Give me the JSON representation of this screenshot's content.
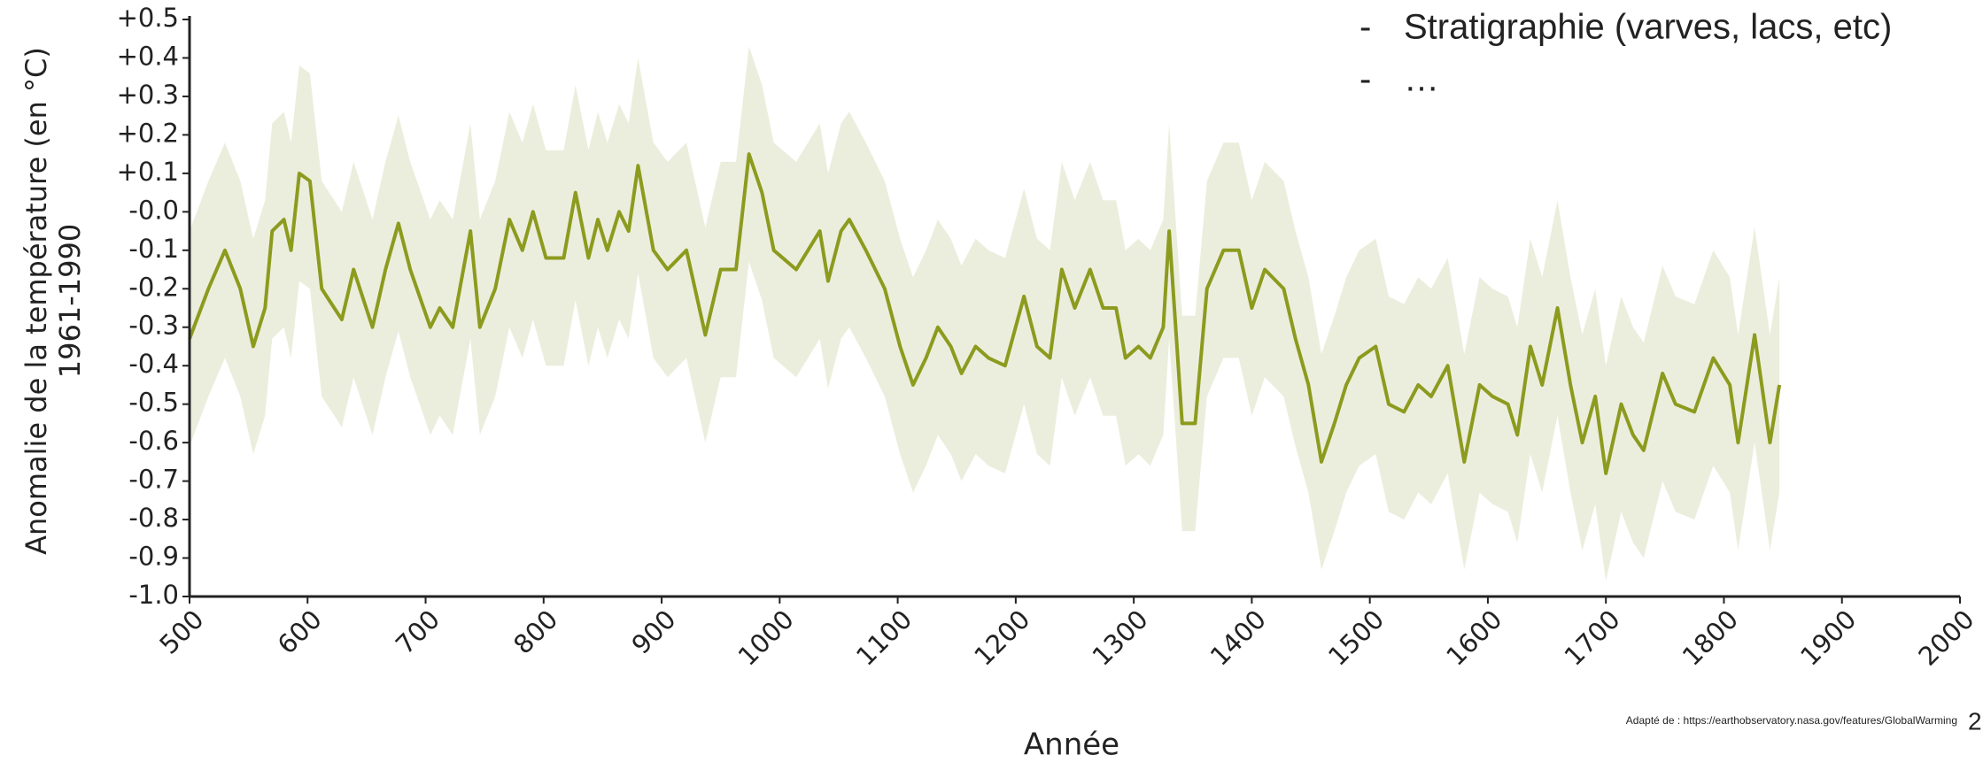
{
  "chart_data": {
    "type": "line",
    "xlabel": "Année",
    "ylabel": [
      "Anomalie de la température (en °C)",
      "1961-1990"
    ],
    "x": [
      500,
      516,
      530,
      543,
      554,
      564,
      570,
      580,
      586,
      593,
      602,
      612,
      629,
      639,
      655,
      666,
      677,
      687,
      704,
      712,
      723,
      738,
      746,
      759,
      771,
      782,
      791,
      802,
      817,
      827,
      838,
      846,
      854,
      864,
      872,
      880,
      893,
      905,
      921,
      937,
      950,
      963,
      974,
      985,
      995,
      1014,
      1034,
      1041,
      1052,
      1059,
      1073,
      1089,
      1102,
      1113,
      1124,
      1134,
      1145,
      1154,
      1166,
      1177,
      1191,
      1207,
      1218,
      1229,
      1239,
      1250,
      1263,
      1274,
      1285,
      1293,
      1304,
      1314,
      1325,
      1330,
      1341,
      1352,
      1362,
      1376,
      1389,
      1400,
      1411,
      1427,
      1437,
      1448,
      1459,
      1470,
      1480,
      1491,
      1505,
      1516,
      1529,
      1541,
      1552,
      1566,
      1580,
      1593,
      1604,
      1617,
      1625,
      1636,
      1646,
      1659,
      1670,
      1680,
      1691,
      1700,
      1713,
      1723,
      1732,
      1748,
      1759,
      1775,
      1791,
      1805,
      1812,
      1826,
      1839,
      1847
    ],
    "series": [
      {
        "color": "#8c9b1e",
        "values": [
          -0.33,
          -0.2,
          -0.1,
          -0.2,
          -0.35,
          -0.25,
          -0.05,
          -0.02,
          -0.1,
          0.1,
          0.08,
          -0.2,
          -0.28,
          -0.15,
          -0.3,
          -0.15,
          -0.03,
          -0.15,
          -0.3,
          -0.25,
          -0.3,
          -0.05,
          -0.3,
          -0.2,
          -0.02,
          -0.1,
          0,
          -0.12,
          -0.12,
          0.05,
          -0.12,
          -0.02,
          -0.1,
          0,
          -0.05,
          0.12,
          -0.1,
          -0.15,
          -0.1,
          -0.32,
          -0.15,
          -0.15,
          0.15,
          0.05,
          -0.1,
          -0.15,
          -0.05,
          -0.18,
          -0.05,
          -0.02,
          -0.1,
          -0.2,
          -0.35,
          -0.45,
          -0.38,
          -0.3,
          -0.35,
          -0.42,
          -0.35,
          -0.38,
          -0.4,
          -0.22,
          -0.35,
          -0.38,
          -0.15,
          -0.25,
          -0.15,
          -0.25,
          -0.25,
          -0.38,
          -0.35,
          -0.38,
          -0.3,
          -0.05,
          -0.55,
          -0.55,
          -0.2,
          -0.1,
          -0.1,
          -0.25,
          -0.15,
          -0.2,
          -0.33,
          -0.45,
          -0.65,
          -0.55,
          -0.45,
          -0.38,
          -0.35,
          -0.5,
          -0.52,
          -0.45,
          -0.48,
          -0.4,
          -0.65,
          -0.45,
          -0.48,
          -0.5,
          -0.58,
          -0.35,
          -0.45,
          -0.25,
          -0.45,
          -0.6,
          -0.48,
          -0.68,
          -0.5,
          -0.58,
          -0.62,
          -0.42,
          -0.5,
          -0.52,
          -0.38,
          -0.45,
          -0.6,
          -0.32,
          -0.6,
          -0.45
        ]
      }
    ],
    "band": {
      "color": "#eceedd",
      "upper": [
        -0.05,
        0.08,
        0.18,
        0.08,
        -0.07,
        0.03,
        0.23,
        0.26,
        0.18,
        0.38,
        0.36,
        0.08,
        0,
        0.13,
        -0.02,
        0.13,
        0.25,
        0.13,
        -0.02,
        0.03,
        -0.02,
        0.23,
        -0.02,
        0.08,
        0.26,
        0.18,
        0.28,
        0.16,
        0.16,
        0.33,
        0.16,
        0.26,
        0.18,
        0.28,
        0.23,
        0.4,
        0.18,
        0.13,
        0.18,
        -0.04,
        0.13,
        0.13,
        0.43,
        0.33,
        0.18,
        0.13,
        0.23,
        0.1,
        0.23,
        0.26,
        0.18,
        0.08,
        -0.07,
        -0.17,
        -0.1,
        -0.02,
        -0.07,
        -0.14,
        -0.07,
        -0.1,
        -0.12,
        0.06,
        -0.07,
        -0.1,
        0.13,
        0.03,
        0.13,
        0.03,
        0.03,
        -0.1,
        -0.07,
        -0.1,
        -0.02,
        0.23,
        -0.27,
        -0.27,
        0.08,
        0.18,
        0.18,
        0.03,
        0.13,
        0.08,
        -0.05,
        -0.17,
        -0.37,
        -0.27,
        -0.17,
        -0.1,
        -0.07,
        -0.22,
        -0.24,
        -0.17,
        -0.2,
        -0.12,
        -0.37,
        -0.17,
        -0.2,
        -0.22,
        -0.3,
        -0.07,
        -0.17,
        0.03,
        -0.17,
        -0.32,
        -0.2,
        -0.4,
        -0.22,
        -0.3,
        -0.34,
        -0.14,
        -0.22,
        -0.24,
        -0.1,
        -0.17,
        -0.32,
        -0.04,
        -0.32,
        -0.17
      ],
      "lower": [
        -0.61,
        -0.48,
        -0.38,
        -0.48,
        -0.63,
        -0.53,
        -0.33,
        -0.3,
        -0.38,
        -0.18,
        -0.2,
        -0.48,
        -0.56,
        -0.43,
        -0.58,
        -0.43,
        -0.31,
        -0.43,
        -0.58,
        -0.53,
        -0.58,
        -0.33,
        -0.58,
        -0.48,
        -0.3,
        -0.38,
        -0.28,
        -0.4,
        -0.4,
        -0.23,
        -0.4,
        -0.3,
        -0.38,
        -0.28,
        -0.33,
        -0.16,
        -0.38,
        -0.43,
        -0.38,
        -0.6,
        -0.43,
        -0.43,
        -0.13,
        -0.23,
        -0.38,
        -0.43,
        -0.33,
        -0.46,
        -0.33,
        -0.3,
        -0.38,
        -0.48,
        -0.63,
        -0.73,
        -0.66,
        -0.58,
        -0.63,
        -0.7,
        -0.63,
        -0.66,
        -0.68,
        -0.5,
        -0.63,
        -0.66,
        -0.43,
        -0.53,
        -0.43,
        -0.53,
        -0.53,
        -0.66,
        -0.63,
        -0.66,
        -0.58,
        -0.33,
        -0.83,
        -0.83,
        -0.48,
        -0.38,
        -0.38,
        -0.53,
        -0.43,
        -0.48,
        -0.61,
        -0.73,
        -0.93,
        -0.83,
        -0.73,
        -0.66,
        -0.63,
        -0.78,
        -0.8,
        -0.73,
        -0.76,
        -0.68,
        -0.93,
        -0.73,
        -0.76,
        -0.78,
        -0.86,
        -0.63,
        -0.73,
        -0.53,
        -0.73,
        -0.88,
        -0.76,
        -0.96,
        -0.78,
        -0.86,
        -0.9,
        -0.7,
        -0.78,
        -0.8,
        -0.66,
        -0.73,
        -0.88,
        -0.6,
        -0.88,
        -0.73
      ]
    },
    "xlim": [
      500,
      2000
    ],
    "xticks": [
      500,
      600,
      700,
      800,
      900,
      1000,
      1100,
      1200,
      1300,
      1400,
      1500,
      1600,
      1700,
      1800,
      1900,
      2000
    ],
    "ylim": [
      -1,
      0.5
    ],
    "yticks": [
      {
        "value": 0.5,
        "label": "+0.5"
      },
      {
        "value": 0.4,
        "label": "+0.4"
      },
      {
        "value": 0.3,
        "label": "+0.3"
      },
      {
        "value": 0.2,
        "label": "+0.2"
      },
      {
        "value": 0.1,
        "label": "+0.1"
      },
      {
        "value": 0,
        "label": "-0.0"
      },
      {
        "value": -0.1,
        "label": "-0.1"
      },
      {
        "value": -0.2,
        "label": "-0.2"
      },
      {
        "value": -0.3,
        "label": "-0.3"
      },
      {
        "value": -0.4,
        "label": "-0.4"
      },
      {
        "value": -0.5,
        "label": "-0.5"
      },
      {
        "value": -0.6,
        "label": "-0.6"
      },
      {
        "value": -0.7,
        "label": "-0.7"
      },
      {
        "value": -0.8,
        "label": "-0.8"
      },
      {
        "value": -0.9,
        "label": "-0.9"
      },
      {
        "value": -1,
        "label": "-1.0"
      }
    ],
    "grid": false
  },
  "bullets": [
    "Stratigraphie (varves, lacs, etc)",
    "…"
  ],
  "source": "Adapté de : https://earthobservatory.nasa.gov/features/GlobalWarming",
  "page_number": "2"
}
